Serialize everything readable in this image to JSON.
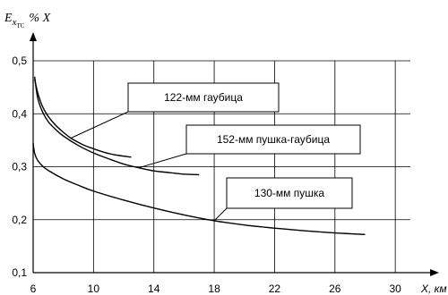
{
  "chart_data": {
    "type": "line",
    "title": "",
    "ylabel": {
      "main": "E",
      "subscript": "x",
      "subsubscript": "TC",
      "suffix": "% X"
    },
    "xlabel": "X, км",
    "xlim": [
      6,
      31
    ],
    "ylim": [
      0.1,
      0.5
    ],
    "x_ticks": [
      6,
      10,
      14,
      18,
      22,
      26,
      30
    ],
    "y_ticks": [
      0.1,
      0.2,
      0.3,
      0.4,
      0.5
    ],
    "y_tick_labels": [
      "0,1",
      "0,2",
      "0,3",
      "0,4",
      "0,5"
    ],
    "grid": true,
    "series": [
      {
        "name": "122-мм гаубица",
        "x": [
          6.1,
          6.3,
          6.6,
          7.0,
          7.5,
          8.0,
          8.5,
          9.0,
          9.5,
          10.0,
          10.5,
          11.0,
          11.5,
          12.0,
          12.5
        ],
        "y": [
          0.465,
          0.44,
          0.415,
          0.395,
          0.378,
          0.365,
          0.354,
          0.346,
          0.339,
          0.334,
          0.329,
          0.325,
          0.322,
          0.32,
          0.318
        ]
      },
      {
        "name": "152-мм пушка-гаубица",
        "x": [
          6.1,
          6.3,
          6.6,
          7.0,
          7.5,
          8.0,
          9.0,
          10.0,
          11.0,
          12.0,
          13.0,
          14.0,
          15.0,
          16.0,
          17.0
        ],
        "y": [
          0.47,
          0.43,
          0.405,
          0.385,
          0.37,
          0.358,
          0.34,
          0.326,
          0.315,
          0.305,
          0.298,
          0.292,
          0.289,
          0.286,
          0.285
        ]
      },
      {
        "name": "130-мм пушка",
        "x": [
          6.0,
          6.1,
          6.3,
          6.6,
          7.0,
          8.0,
          9.0,
          10.0,
          12.0,
          14.0,
          16.0,
          18.0,
          20.0,
          22.0,
          24.0,
          26.0,
          28.0
        ],
        "y": [
          0.345,
          0.325,
          0.312,
          0.302,
          0.293,
          0.277,
          0.265,
          0.254,
          0.237,
          0.222,
          0.209,
          0.198,
          0.19,
          0.184,
          0.179,
          0.175,
          0.172
        ]
      }
    ],
    "annotations": [
      {
        "text": "122-мм гаубица",
        "series": 0,
        "pointer_x": 8.5,
        "pointer_y": 0.354
      },
      {
        "text": "152-мм пушка-гаубица",
        "series": 1,
        "pointer_x": 13.0,
        "pointer_y": 0.298
      },
      {
        "text": "130-мм пушка",
        "series": 2,
        "pointer_x": 18.0,
        "pointer_y": 0.198
      }
    ]
  }
}
